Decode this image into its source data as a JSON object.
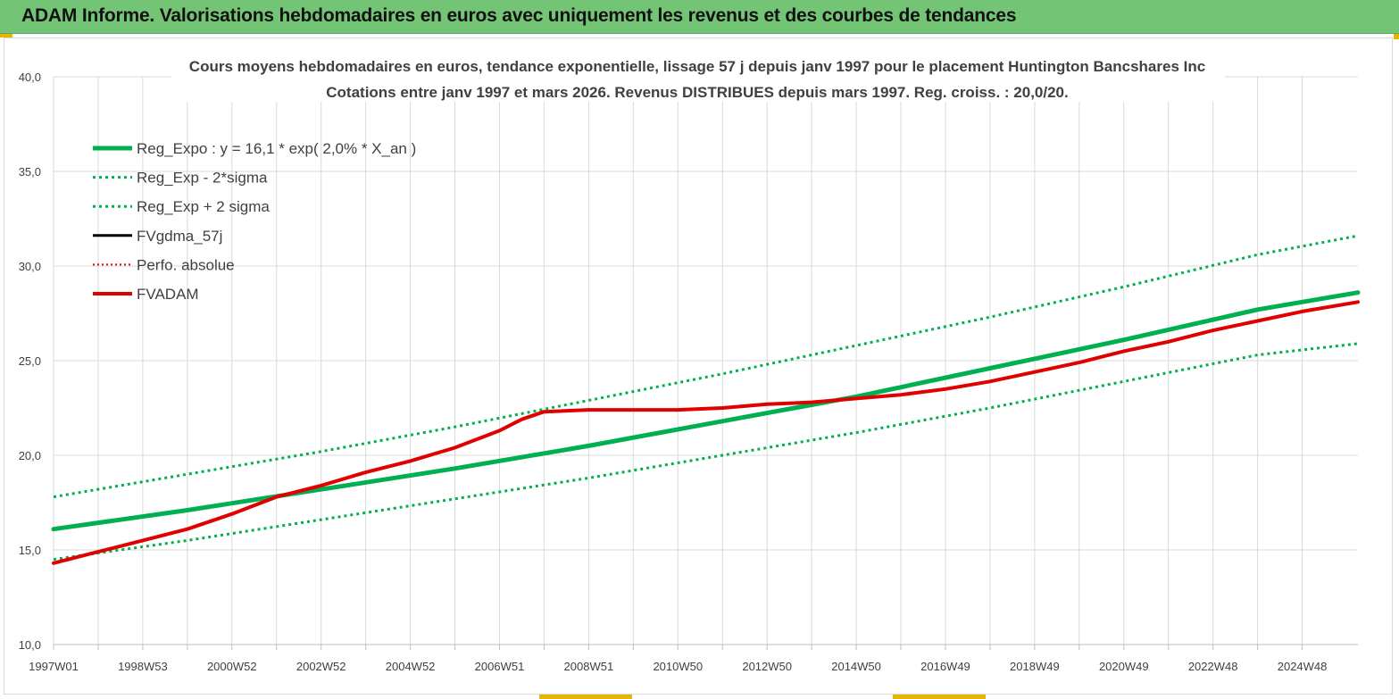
{
  "banner": {
    "title": "ADAM Informe. Valorisations hebdomadaires en euros avec uniquement les revenus et des courbes de tendances"
  },
  "chart_data": {
    "type": "line",
    "title": "Cours moyens hebdomadaires en euros, tendance exponentielle, lissage 57 j depuis janv 1997  pour le placement Huntington Bancshares Inc",
    "subtitle": "Cotations entre janv 1997 et mars 2026. Revenus DISTRIBUES depuis mars 1997. Reg. croiss. : 20,0/20.",
    "xlabel": "",
    "ylabel": "",
    "ylim": [
      10,
      40
    ],
    "yticks": [
      "10,0",
      "15,0",
      "20,0",
      "25,0",
      "30,0",
      "35,0",
      "40,0"
    ],
    "xlim": [
      1997.0,
      2026.25
    ],
    "xtick_positions": [
      1997.0,
      1998.0,
      1999.0,
      2000.0,
      2001.0,
      2002.0,
      2003.0,
      2004.0,
      2005.0,
      2006.0,
      2007.0,
      2008.0,
      2009.0,
      2010.0,
      2011.0,
      2012.0,
      2013.0,
      2014.0,
      2015.0,
      2016.0,
      2017.0,
      2018.0,
      2019.0,
      2020.0,
      2021.0,
      2022.0,
      2023.0,
      2024.0,
      2025.0
    ],
    "xtick_labels": [
      "1997W01",
      "1998W53",
      "2000W52",
      "2002W52",
      "2004W52",
      "2006W51",
      "2008W51",
      "2010W50",
      "2012W50",
      "2014W50",
      "2016W49",
      "2018W49",
      "2020W49",
      "2022W48",
      "2024W48"
    ],
    "xtick_label_positions": [
      1997.0,
      1999.0,
      2001.0,
      2003.0,
      2005.0,
      2007.0,
      2009.0,
      2011.0,
      2013.0,
      2015.0,
      2017.0,
      2019.0,
      2021.0,
      2023.0,
      2025.0
    ],
    "grid": true,
    "legend_position": "top-left",
    "series": [
      {
        "name": "Reg_Expo : y = 16,1 * exp( 2,0% *  X_an )",
        "color": "#00b050",
        "style": "solid",
        "width": 5,
        "x": [
          1997.0,
          2000.0,
          2003.0,
          2006.0,
          2009.0,
          2012.0,
          2015.0,
          2018.0,
          2021.0,
          2024.0,
          2026.25
        ],
        "y": [
          16.1,
          17.1,
          18.2,
          19.3,
          20.5,
          21.8,
          23.1,
          24.6,
          26.1,
          27.7,
          28.6
        ]
      },
      {
        "name": "Reg_Exp - 2*sigma",
        "color": "#00b050",
        "style": "dotted",
        "width": 3,
        "x": [
          1997.0,
          2000.0,
          2003.0,
          2006.0,
          2009.0,
          2012.0,
          2015.0,
          2018.0,
          2021.0,
          2024.0,
          2026.25
        ],
        "y": [
          14.5,
          15.5,
          16.6,
          17.7,
          18.8,
          20.0,
          21.2,
          22.5,
          23.9,
          25.3,
          25.9
        ]
      },
      {
        "name": "Reg_Exp + 2 sigma",
        "color": "#00b050",
        "style": "dotted",
        "width": 3,
        "x": [
          1997.0,
          2000.0,
          2003.0,
          2006.0,
          2009.0,
          2012.0,
          2015.0,
          2018.0,
          2021.0,
          2024.0,
          2026.25
        ],
        "y": [
          17.8,
          19.0,
          20.2,
          21.5,
          22.9,
          24.3,
          25.8,
          27.3,
          28.9,
          30.6,
          31.6
        ]
      },
      {
        "name": "FVgdma_57j",
        "color": "#000000",
        "style": "solid",
        "width": 3,
        "x": [],
        "y": []
      },
      {
        "name": "Perfo. absolue",
        "color": "#e00000",
        "style": "dotted",
        "width": 2,
        "x": [],
        "y": []
      },
      {
        "name": "FVADAM",
        "color": "#e00000",
        "style": "solid",
        "width": 4,
        "x": [
          1997.0,
          1998.0,
          1999.0,
          2000.0,
          2001.0,
          2002.0,
          2003.0,
          2004.0,
          2005.0,
          2006.0,
          2007.0,
          2007.5,
          2008.0,
          2009.0,
          2010.0,
          2011.0,
          2012.0,
          2013.0,
          2014.0,
          2015.0,
          2016.0,
          2017.0,
          2018.0,
          2019.0,
          2020.0,
          2021.0,
          2022.0,
          2023.0,
          2024.0,
          2025.0,
          2026.25
        ],
        "y": [
          14.3,
          14.9,
          15.5,
          16.1,
          16.9,
          17.8,
          18.4,
          19.1,
          19.7,
          20.4,
          21.3,
          21.9,
          22.3,
          22.4,
          22.4,
          22.4,
          22.5,
          22.7,
          22.8,
          23.0,
          23.2,
          23.5,
          23.9,
          24.4,
          24.9,
          25.5,
          26.0,
          26.6,
          27.1,
          27.6,
          28.1
        ]
      }
    ]
  }
}
